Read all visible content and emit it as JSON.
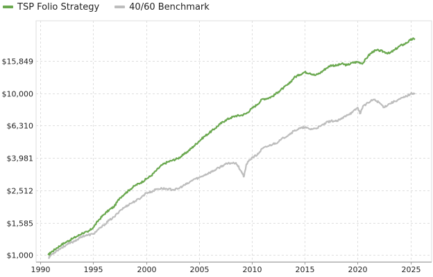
{
  "colors": {
    "strategy": "#6aa84f",
    "benchmark": "#bdbdbd",
    "grid": "#dedede",
    "axis": "#999999"
  },
  "chart_data": {
    "type": "line",
    "title": "",
    "xlabel": "",
    "ylabel": "",
    "y_scale": "log",
    "grid": true,
    "legend_position": "top-left",
    "xlim": [
      1989.6,
      2027.0
    ],
    "ylim": [
      910,
      28000
    ],
    "x_ticks": [
      1990,
      1995,
      2000,
      2005,
      2010,
      2015,
      2020,
      2025
    ],
    "x_tick_labels": [
      "1990",
      "1995",
      "2000",
      "2005",
      "2010",
      "2015",
      "2020",
      "2025"
    ],
    "y_ticks": [
      1000,
      1585,
      2512,
      3981,
      6310,
      10000,
      15849
    ],
    "y_tick_labels": [
      "$1,000",
      "$1,585",
      "$2,512",
      "$3,981",
      "$6,310",
      "$10,000",
      "$15,849"
    ],
    "series": [
      {
        "name": "TSP Folio Strategy",
        "color": "#6aa84f",
        "x": [
          1990.75,
          1991.0,
          1991.5,
          1992.0,
          1992.5,
          1993.0,
          1993.5,
          1994.0,
          1994.5,
          1995.0,
          1995.5,
          1996.0,
          1996.5,
          1997.0,
          1997.5,
          1998.0,
          1998.5,
          1999.0,
          1999.5,
          2000.0,
          2000.5,
          2001.0,
          2001.5,
          2002.0,
          2002.5,
          2003.0,
          2003.5,
          2004.0,
          2004.5,
          2005.0,
          2005.5,
          2006.0,
          2006.5,
          2007.0,
          2007.5,
          2008.0,
          2008.5,
          2009.0,
          2009.5,
          2010.0,
          2010.5,
          2011.0,
          2011.5,
          2012.0,
          2012.5,
          2013.0,
          2013.5,
          2014.0,
          2014.5,
          2015.0,
          2015.5,
          2016.0,
          2016.5,
          2017.0,
          2017.5,
          2018.0,
          2018.5,
          2019.0,
          2019.5,
          2020.0,
          2020.5,
          2021.0,
          2021.5,
          2022.0,
          2022.5,
          2023.0,
          2023.5,
          2024.0,
          2024.5,
          2025.0,
          2025.4
        ],
        "values": [
          1000,
          1040,
          1100,
          1160,
          1210,
          1260,
          1310,
          1370,
          1390,
          1480,
          1640,
          1780,
          1900,
          2000,
          2250,
          2400,
          2550,
          2700,
          2800,
          2950,
          3100,
          3350,
          3600,
          3750,
          3850,
          3950,
          4150,
          4400,
          4700,
          5050,
          5400,
          5700,
          6050,
          6450,
          6800,
          7050,
          7250,
          7300,
          7500,
          8050,
          8500,
          9200,
          9300,
          9600,
          10200,
          10800,
          11400,
          12500,
          13000,
          13500,
          13300,
          12900,
          13400,
          14200,
          14900,
          14800,
          15200,
          14900,
          15400,
          15600,
          15300,
          17000,
          18200,
          18400,
          18000,
          17600,
          18500,
          19600,
          20200,
          21300,
          21800
        ]
      },
      {
        "name": "40/60 Benchmark",
        "color": "#bdbdbd",
        "x": [
          1990.75,
          1991.0,
          1991.5,
          1992.0,
          1992.5,
          1993.0,
          1993.5,
          1994.0,
          1994.5,
          1995.0,
          1995.5,
          1996.0,
          1996.5,
          1997.0,
          1997.5,
          1998.0,
          1998.5,
          1999.0,
          1999.5,
          2000.0,
          2000.5,
          2001.0,
          2001.5,
          2002.0,
          2002.5,
          2003.0,
          2003.5,
          2004.0,
          2004.5,
          2005.0,
          2005.5,
          2006.0,
          2006.5,
          2007.0,
          2007.5,
          2008.0,
          2008.5,
          2009.0,
          2009.25,
          2009.5,
          2010.0,
          2010.5,
          2011.0,
          2011.5,
          2012.0,
          2012.5,
          2013.0,
          2013.5,
          2014.0,
          2014.5,
          2015.0,
          2015.5,
          2016.0,
          2016.5,
          2017.0,
          2017.5,
          2018.0,
          2018.5,
          2019.0,
          2019.5,
          2020.0,
          2020.25,
          2020.5,
          2021.0,
          2021.5,
          2022.0,
          2022.5,
          2023.0,
          2023.5,
          2024.0,
          2024.5,
          2025.0,
          2025.4
        ],
        "values": [
          960,
          1000,
          1060,
          1110,
          1160,
          1200,
          1250,
          1310,
          1330,
          1350,
          1440,
          1530,
          1640,
          1720,
          1880,
          1980,
          2080,
          2160,
          2260,
          2420,
          2460,
          2560,
          2580,
          2560,
          2540,
          2560,
          2680,
          2780,
          2940,
          3000,
          3120,
          3230,
          3350,
          3500,
          3640,
          3700,
          3720,
          3300,
          3050,
          3650,
          4000,
          4150,
          4550,
          4700,
          4850,
          5000,
          5300,
          5550,
          5850,
          6050,
          6150,
          6000,
          6050,
          6250,
          6550,
          6750,
          6700,
          6950,
          7350,
          7600,
          8150,
          7500,
          8300,
          8700,
          9150,
          8800,
          8200,
          8600,
          8900,
          9200,
          9500,
          9900,
          10050
        ]
      }
    ]
  }
}
